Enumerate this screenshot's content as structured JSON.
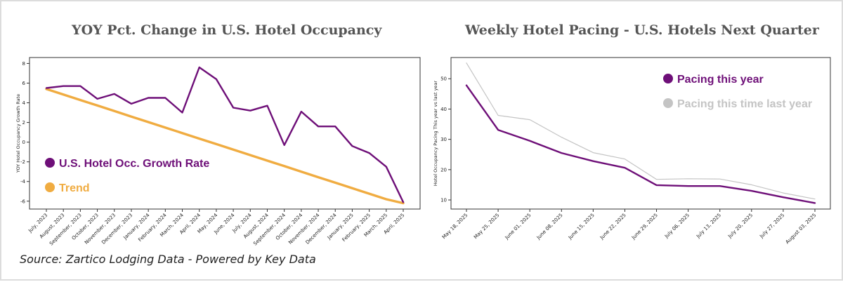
{
  "colors": {
    "purple": "#6e0f78",
    "orange": "#f0ac41",
    "gray": "#c4c4c4",
    "axis": "#333333"
  },
  "source_note": "Source: Zartico Lodging Data - Powered by Key Data",
  "chart_data": [
    {
      "type": "line",
      "title": "YOY Pct. Change in U.S. Hotel Occupancy",
      "ylabel": "YOY Hotel Occupancy Growth Rate",
      "xlabel": "",
      "ylim": [
        -6.8,
        8.6
      ],
      "yticks": [
        -6,
        -4,
        -2,
        0,
        2,
        4,
        6,
        8
      ],
      "grid": false,
      "legend_position": "lower-left",
      "categories": [
        "July, 2023",
        "August, 2023",
        "September, 2023",
        "October, 2023",
        "November, 2023",
        "December, 2023",
        "January, 2024",
        "February, 2024",
        "March, 2024",
        "April, 2024",
        "May, 2024",
        "June, 2024",
        "July, 2024",
        "August, 2024",
        "September, 2024",
        "October, 2024",
        "November, 2024",
        "December, 2024",
        "January, 2025",
        "February, 2025",
        "March, 2025",
        "April, 2025"
      ],
      "series": [
        {
          "name": "U.S. Hotel Occ. Growth Rate",
          "color": "#6e0f78",
          "values": [
            5.5,
            5.7,
            5.7,
            4.4,
            4.9,
            3.9,
            4.5,
            4.5,
            3.0,
            7.6,
            6.4,
            3.5,
            3.2,
            3.7,
            -0.3,
            3.1,
            1.6,
            1.6,
            -0.4,
            -1.1,
            -2.5,
            -6.1
          ]
        },
        {
          "name": "Trend",
          "color": "#f0ac41",
          "values": [
            5.4,
            4.84,
            4.28,
            3.72,
            3.16,
            2.6,
            2.04,
            1.48,
            0.92,
            0.36,
            -0.2,
            -0.76,
            -1.32,
            -1.88,
            -2.44,
            -3.0,
            -3.56,
            -4.12,
            -4.68,
            -5.24,
            -5.8,
            -6.2
          ]
        }
      ]
    },
    {
      "type": "line",
      "title": "Weekly Hotel Pacing - U.S. Hotels Next Quarter",
      "ylabel": "Hotel Occupancy Pacing This year vs last year",
      "xlabel": "",
      "ylim": [
        7,
        57
      ],
      "yticks": [
        10,
        20,
        30,
        40,
        50
      ],
      "grid": false,
      "legend_position": "top-right",
      "categories": [
        "May 18, 2025",
        "May 25, 2025",
        "June 01, 2025",
        "June 08, 2025",
        "June 15, 2025",
        "June 22, 2025",
        "June 29, 2025",
        "July 06, 2025",
        "July 13, 2025",
        "July 20, 2025",
        "July 27, 2025",
        "August 03, 2025"
      ],
      "series": [
        {
          "name": "Pacing this year",
          "color": "#6e0f78",
          "values": [
            47.8,
            33.1,
            29.5,
            25.5,
            22.8,
            20.6,
            14.9,
            14.6,
            14.6,
            13.0,
            10.9,
            9.0
          ]
        },
        {
          "name": "Pacing this time last year",
          "color": "#c4c4c4",
          "values": [
            55.2,
            37.9,
            36.5,
            30.7,
            25.6,
            23.5,
            16.8,
            17.0,
            16.9,
            15.0,
            12.3,
            10.3
          ]
        }
      ]
    }
  ]
}
